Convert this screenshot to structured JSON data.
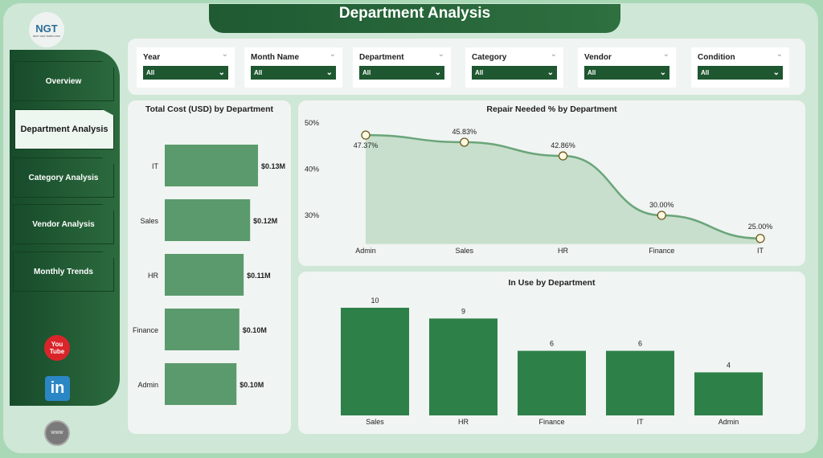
{
  "header": {
    "title": "Department Analysis"
  },
  "logo": {
    "text": "NGT",
    "tagline": "NEXT GEN TEMPLATES"
  },
  "sidebar": {
    "items": [
      {
        "label": "Overview"
      },
      {
        "label": "Department Analysis",
        "active": true
      },
      {
        "label": "Category Analysis"
      },
      {
        "label": "Vendor Analysis"
      },
      {
        "label": "Monthly Trends"
      }
    ],
    "social": [
      {
        "icon": "youtube-icon",
        "text": "You Tube"
      },
      {
        "icon": "linkedin-icon",
        "text": "in"
      },
      {
        "icon": "globe-icon",
        "text": "www"
      }
    ]
  },
  "filters": [
    {
      "label": "Year",
      "value": "All"
    },
    {
      "label": "Month Name",
      "value": "All"
    },
    {
      "label": "Department",
      "value": "All"
    },
    {
      "label": "Category",
      "value": "All"
    },
    {
      "label": "Vendor",
      "value": "All"
    },
    {
      "label": "Condition",
      "value": "All"
    }
  ],
  "colors": {
    "accent": "#1e5730",
    "bar": "#5b9a6d",
    "bar2": "#2e8049",
    "line": "#6aa57a",
    "area": "#c7dfcc"
  },
  "chart_data": [
    {
      "type": "bar",
      "orientation": "horizontal",
      "title": "Total Cost (USD) by Department",
      "categories": [
        "IT",
        "Sales",
        "HR",
        "Finance",
        "Admin"
      ],
      "values": [
        0.13,
        0.119,
        0.11,
        0.104,
        0.1
      ],
      "data_labels": [
        "$0.13M",
        "$0.12M",
        "$0.11M",
        "$0.10M",
        "$0.10M"
      ],
      "unit": "USD millions"
    },
    {
      "type": "area",
      "title": "Repair Needed % by Department",
      "categories": [
        "Admin",
        "Sales",
        "HR",
        "Finance",
        "IT"
      ],
      "values": [
        47.37,
        45.83,
        42.86,
        30.0,
        25.0
      ],
      "data_labels": [
        "47.37%",
        "45.83%",
        "42.86%",
        "30.00%",
        "25.00%"
      ],
      "y_ticks": [
        "50%",
        "40%",
        "30%"
      ],
      "ylim": [
        23.8,
        50
      ]
    },
    {
      "type": "bar",
      "title": "In Use by Department",
      "categories": [
        "Sales",
        "HR",
        "Finance",
        "IT",
        "Admin"
      ],
      "values": [
        10,
        9,
        6,
        6,
        4
      ],
      "ylim": [
        0,
        10
      ]
    }
  ]
}
